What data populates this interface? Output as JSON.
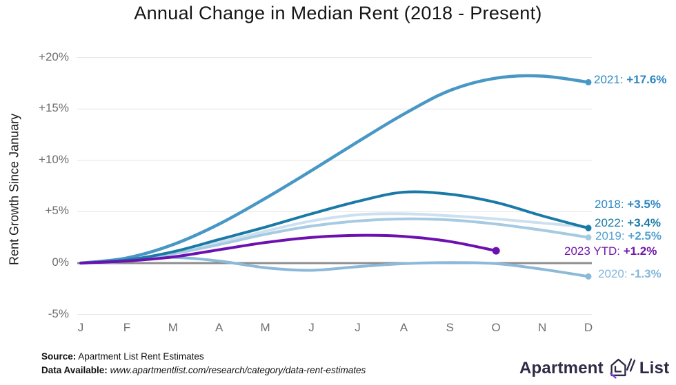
{
  "title": "Annual Change in Median Rent (2018 - Present)",
  "ylabel": "Rent Growth Since January",
  "chart_data": {
    "type": "line",
    "categories": [
      "J",
      "F",
      "M",
      "A",
      "M",
      "J",
      "J",
      "A",
      "S",
      "O",
      "N",
      "D"
    ],
    "xlabel": "",
    "ylim": [
      -5,
      20
    ],
    "grid": "horizontal",
    "yticks": [
      {
        "value": 20,
        "label": "+20%"
      },
      {
        "value": 15,
        "label": "+15%"
      },
      {
        "value": 10,
        "label": "+10%"
      },
      {
        "value": 5,
        "label": "+5%"
      },
      {
        "value": 0,
        "label": "0%"
      },
      {
        "value": -5,
        "label": "-5%"
      }
    ],
    "zero_line_color": "#8e8e8e",
    "gridline_color": "#e5e5e5",
    "series": [
      {
        "name": "2018",
        "year_label": "2018:",
        "value_label": "+3.5%",
        "line_color": "#cde0ef",
        "label_color": "#2e86c1",
        "values": [
          0,
          0.3,
          1.0,
          2.0,
          3.1,
          4.1,
          4.7,
          4.8,
          4.6,
          4.3,
          3.9,
          3.5
        ]
      },
      {
        "name": "2019",
        "year_label": "2019:",
        "value_label": "+2.5%",
        "line_color": "#a6cae2",
        "label_color": "#55a1d0",
        "values": [
          0,
          0.2,
          0.9,
          1.8,
          2.8,
          3.6,
          4.1,
          4.3,
          4.2,
          3.8,
          3.2,
          2.5
        ]
      },
      {
        "name": "2020",
        "year_label": "2020:",
        "value_label": "-1.3%",
        "line_color": "#8cb8d9",
        "label_color": "#83b7dc",
        "values": [
          0,
          0.3,
          0.55,
          0.2,
          -0.45,
          -0.7,
          -0.35,
          -0.05,
          0.05,
          -0.05,
          -0.6,
          -1.3
        ]
      },
      {
        "name": "2021",
        "year_label": "2021:",
        "value_label": "+17.6%",
        "line_color": "#4897c4",
        "label_color": "#2d87c0",
        "values": [
          0,
          0.5,
          1.8,
          3.8,
          6.3,
          9.0,
          11.8,
          14.5,
          16.8,
          18.0,
          18.2,
          17.6
        ]
      },
      {
        "name": "2022",
        "year_label": "2022:",
        "value_label": "+3.4%",
        "line_color": "#1a7aa5",
        "label_color": "#1a7aa5",
        "values": [
          0,
          0.3,
          1.1,
          2.3,
          3.5,
          4.8,
          6.0,
          6.9,
          6.7,
          5.9,
          4.6,
          3.4
        ]
      },
      {
        "name": "2023 YTD",
        "year_label": "2023 YTD:",
        "value_label": "+1.2%",
        "line_color": "#6c10b0",
        "label_color": "#7017a8",
        "values": [
          0,
          0.2,
          0.6,
          1.3,
          2.0,
          2.5,
          2.7,
          2.6,
          2.1,
          1.2
        ]
      }
    ]
  },
  "footer": {
    "source_label": "Source:",
    "source_text": "Apartment List Rent Estimates",
    "data_label": "Data Available:",
    "data_url": "www.apartmentlist.com/research/category/data-rent-estimates"
  },
  "logo": {
    "part1": "Apartment",
    "part2": "List"
  }
}
